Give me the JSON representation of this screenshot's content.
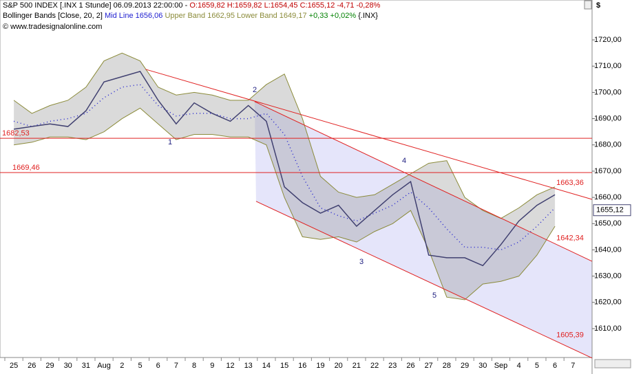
{
  "header": {
    "symbol": "S&P 500 INDEX [.INX  1 Stunde] 06.09.2013 22:00:00 -",
    "ohlc": "O:1659,82 H:1659,82 L:1654,45 C:1655,12 -4,71 -0,28%",
    "indicator": "Bollinger Bands [Close, 20, 2]",
    "mid": "Mid Line 1656,06",
    "upper": "Upper Band 1662,95",
    "lower": "Lower Band 1649,17",
    "change": "+0,33 +0,02%",
    "source": "{.INX}",
    "copyright": "© www.tradesignalonline.com",
    "currency": "$"
  },
  "chart_data": {
    "type": "line",
    "categories": [
      "25",
      "26",
      "29",
      "30",
      "31",
      "Aug",
      "2",
      "5",
      "6",
      "7",
      "8",
      "9",
      "12",
      "13",
      "14",
      "15",
      "16",
      "19",
      "20",
      "21",
      "22",
      "23",
      "26",
      "27",
      "28",
      "29",
      "30",
      "Sep",
      "4",
      "5",
      "6",
      "7"
    ],
    "series": [
      {
        "name": "Close",
        "color": "#404070",
        "values": [
          1686,
          1687,
          1688,
          1687,
          1693,
          1704,
          1706,
          1708,
          1697,
          1688,
          1696,
          1692,
          1689,
          1695,
          1689,
          1664,
          1658,
          1654,
          1657,
          1649,
          1655,
          1661,
          1666,
          1638,
          1637,
          1637,
          1634,
          1642,
          1651,
          1657,
          1661,
          null
        ]
      },
      {
        "name": "Upper Band",
        "color": "#8b8b3a",
        "values": [
          1697,
          1692,
          1695,
          1697,
          1702,
          1712,
          1715,
          1712,
          1702,
          1699,
          1700,
          1699,
          1697,
          1697,
          1703,
          1707,
          1690,
          1668,
          1662,
          1660,
          1661,
          1665,
          1669,
          1673,
          1674,
          1660,
          1655,
          1652,
          1656,
          1661,
          1664,
          null
        ]
      },
      {
        "name": "Lower Band",
        "color": "#8b8b3a",
        "values": [
          1680,
          1681,
          1683,
          1683,
          1682,
          1685,
          1690,
          1694,
          1688,
          1682,
          1684,
          1684,
          1683,
          1683,
          1680,
          1660,
          1645,
          1644,
          1645,
          1643,
          1647,
          1650,
          1655,
          1640,
          1622,
          1621,
          1627,
          1628,
          1630,
          1638,
          1649,
          null
        ]
      },
      {
        "name": "Mid Line",
        "color": "#2020d0",
        "values": [
          1689,
          1687,
          1689,
          1690,
          1692,
          1698,
          1702,
          1703,
          1695,
          1691,
          1692,
          1692,
          1690,
          1690,
          1692,
          1684,
          1668,
          1656,
          1653,
          1651,
          1654,
          1657,
          1662,
          1656,
          1648,
          1641,
          1641,
          1640,
          1643,
          1649,
          1656,
          null
        ]
      }
    ],
    "levels": [
      {
        "value": 1682.53,
        "label": "1682,53",
        "color": "#e02020"
      },
      {
        "value": 1669.46,
        "label": "1669,46",
        "color": "#e02020"
      }
    ],
    "trendlines": [
      {
        "from": [
          7.3,
          1708.8
        ],
        "to": [
          30,
          1663.36
        ],
        "label": "1663,36",
        "color": "#e02020"
      },
      {
        "from": [
          13.35,
          1696.5
        ],
        "to": [
          30,
          1642.34
        ],
        "label": "1642,34",
        "color": "#e02020"
      },
      {
        "from": [
          13.43,
          1658.5
        ],
        "to": [
          30,
          1605.39
        ],
        "label": "1605,39",
        "color": "#e02020"
      }
    ],
    "waves": [
      "1",
      "2",
      "3",
      "4",
      "5"
    ],
    "last_price": {
      "value": 1655.12,
      "label": "1655,12"
    },
    "ylim": [
      1599,
      1735.2
    ],
    "yticks": [
      {
        "value": 1610,
        "label": "1610,00"
      },
      {
        "value": 1620,
        "label": "1620,00"
      },
      {
        "value": 1630,
        "label": "1630,00"
      },
      {
        "value": 1640,
        "label": "1640,00"
      },
      {
        "value": 1650,
        "label": "1650,00"
      },
      {
        "value": 1660,
        "label": "1660,00"
      },
      {
        "value": 1670,
        "label": "1670,00"
      },
      {
        "value": 1680,
        "label": "1680,00"
      },
      {
        "value": 1690,
        "label": "1690,00"
      },
      {
        "value": 1700,
        "label": "1700,00"
      },
      {
        "value": 1710,
        "label": "1710,00"
      },
      {
        "value": 1720,
        "label": "1720,00"
      }
    ],
    "grid": false
  }
}
